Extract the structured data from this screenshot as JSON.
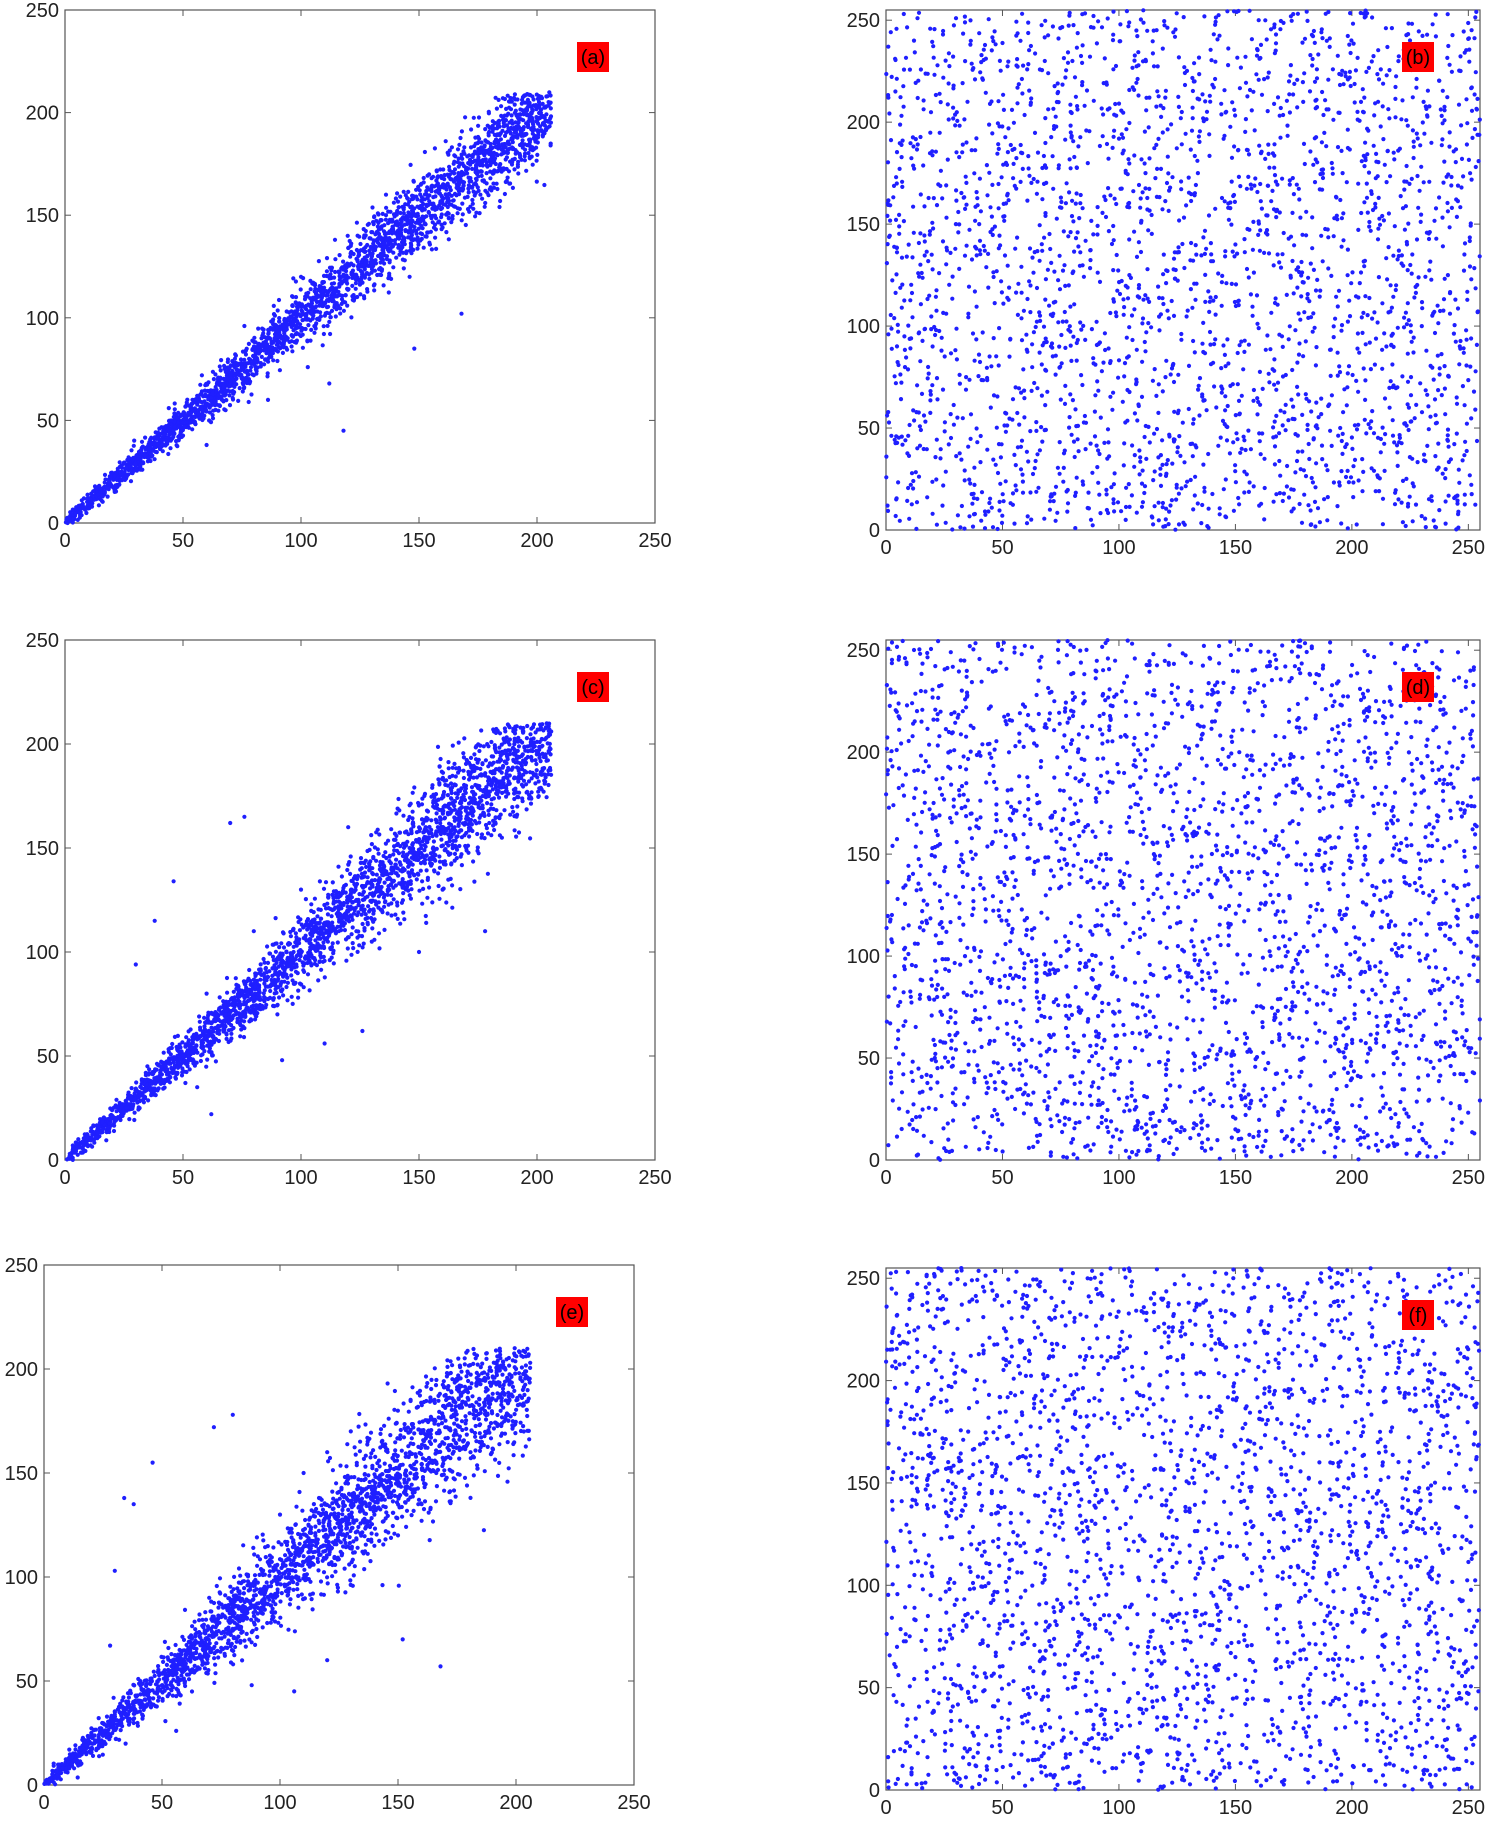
{
  "chart_data": [
    {
      "type": "scatter",
      "panel_label": "(a)",
      "xlim": [
        0,
        250
      ],
      "ylim": [
        0,
        250
      ],
      "xticks": [
        "0",
        "50",
        "100",
        "150",
        "200",
        "250"
      ],
      "yticks": [
        "0",
        "50",
        "100",
        "150",
        "200",
        "250"
      ],
      "grid": false,
      "marker_color": "#1f1fff",
      "label_bg": "#ff0000",
      "points": [
        [
          2,
          2
        ],
        [
          6,
          5
        ],
        [
          10,
          9
        ],
        [
          14,
          14
        ],
        [
          18,
          17
        ],
        [
          22,
          21
        ],
        [
          26,
          27
        ],
        [
          30,
          29
        ],
        [
          34,
          33
        ],
        [
          38,
          37
        ],
        [
          42,
          43
        ],
        [
          46,
          45
        ],
        [
          50,
          49
        ],
        [
          54,
          55
        ],
        [
          58,
          56
        ],
        [
          62,
          61
        ],
        [
          66,
          68
        ],
        [
          70,
          69
        ],
        [
          74,
          72
        ],
        [
          78,
          80
        ],
        [
          82,
          84
        ],
        [
          86,
          83
        ],
        [
          90,
          91
        ],
        [
          94,
          97
        ],
        [
          98,
          95
        ],
        [
          102,
          101
        ],
        [
          106,
          110
        ],
        [
          110,
          107
        ],
        [
          114,
          113
        ],
        [
          118,
          121
        ],
        [
          122,
          123
        ],
        [
          126,
          122
        ],
        [
          130,
          131
        ],
        [
          134,
          138
        ],
        [
          138,
          134
        ],
        [
          142,
          142
        ],
        [
          146,
          150
        ],
        [
          150,
          146
        ],
        [
          154,
          155
        ],
        [
          158,
          162
        ],
        [
          162,
          158
        ],
        [
          166,
          165
        ],
        [
          170,
          172
        ],
        [
          174,
          171
        ],
        [
          178,
          177
        ],
        [
          182,
          185
        ],
        [
          186,
          183
        ],
        [
          190,
          192
        ],
        [
          196,
          199
        ],
        [
          204,
          203
        ],
        [
          8,
          12
        ],
        [
          16,
          13
        ],
        [
          24,
          28
        ],
        [
          32,
          26
        ],
        [
          40,
          46
        ],
        [
          48,
          42
        ],
        [
          56,
          62
        ],
        [
          64,
          58
        ],
        [
          72,
          80
        ],
        [
          80,
          72
        ],
        [
          88,
          98
        ],
        [
          96,
          86
        ],
        [
          104,
          118
        ],
        [
          112,
          98
        ],
        [
          120,
          134
        ],
        [
          128,
          114
        ],
        [
          136,
          150
        ],
        [
          144,
          128
        ],
        [
          152,
          166
        ],
        [
          160,
          144
        ],
        [
          168,
          178
        ],
        [
          176,
          160
        ],
        [
          184,
          196
        ],
        [
          192,
          176
        ],
        [
          60,
          38
        ],
        [
          86,
          60
        ],
        [
          112,
          68
        ],
        [
          118,
          45
        ],
        [
          148,
          85
        ],
        [
          168,
          102
        ],
        [
          146,
          120
        ],
        [
          136,
          160
        ],
        [
          124,
          140
        ],
        [
          100,
          120
        ],
        [
          76,
          96
        ],
        [
          58,
          72
        ],
        [
          44,
          56
        ]
      ]
    },
    {
      "type": "scatter",
      "panel_label": "(b)",
      "xlim": [
        0,
        255
      ],
      "ylim": [
        0,
        255
      ],
      "xticks": [
        "0",
        "50",
        "100",
        "150",
        "200",
        "250"
      ],
      "yticks": [
        "0",
        "50",
        "100",
        "150",
        "200",
        "250"
      ],
      "grid": false,
      "marker_color": "#1f1fff",
      "label_bg": "#ff0000",
      "distribution": "uniform",
      "points": [
        [
          12,
          240
        ],
        [
          35,
          210
        ],
        [
          58,
          185
        ],
        [
          80,
          230
        ],
        [
          104,
          160
        ],
        [
          127,
          205
        ],
        [
          150,
          140
        ],
        [
          173,
          220
        ],
        [
          196,
          175
        ],
        [
          219,
          120
        ],
        [
          242,
          195
        ],
        [
          20,
          90
        ],
        [
          45,
          60
        ],
        [
          70,
          110
        ],
        [
          95,
          35
        ],
        [
          120,
          75
        ],
        [
          145,
          20
        ],
        [
          170,
          95
        ],
        [
          195,
          50
        ],
        [
          220,
          15
        ],
        [
          245,
          65
        ],
        [
          30,
          150
        ],
        [
          88,
          5
        ],
        [
          160,
          250
        ],
        [
          230,
          100
        ]
      ]
    },
    {
      "type": "scatter",
      "panel_label": "(c)",
      "xlim": [
        0,
        250
      ],
      "ylim": [
        0,
        250
      ],
      "xticks": [
        "0",
        "50",
        "100",
        "150",
        "200",
        "250"
      ],
      "yticks": [
        "0",
        "50",
        "100",
        "150",
        "200",
        "250"
      ],
      "grid": false,
      "marker_color": "#1f1fff",
      "label_bg": "#ff0000",
      "points": [
        [
          2,
          2
        ],
        [
          8,
          7
        ],
        [
          14,
          13
        ],
        [
          20,
          21
        ],
        [
          26,
          25
        ],
        [
          32,
          31
        ],
        [
          38,
          39
        ],
        [
          44,
          42
        ],
        [
          50,
          50
        ],
        [
          56,
          58
        ],
        [
          62,
          60
        ],
        [
          68,
          70
        ],
        [
          74,
          76
        ],
        [
          80,
          78
        ],
        [
          86,
          88
        ],
        [
          92,
          96
        ],
        [
          98,
          94
        ],
        [
          104,
          106
        ],
        [
          110,
          114
        ],
        [
          116,
          110
        ],
        [
          122,
          124
        ],
        [
          128,
          133
        ],
        [
          134,
          128
        ],
        [
          140,
          142
        ],
        [
          146,
          150
        ],
        [
          152,
          146
        ],
        [
          158,
          160
        ],
        [
          164,
          168
        ],
        [
          170,
          164
        ],
        [
          176,
          178
        ],
        [
          182,
          186
        ],
        [
          188,
          182
        ],
        [
          194,
          195
        ],
        [
          200,
          201
        ],
        [
          206,
          206
        ],
        [
          70,
          162
        ],
        [
          76,
          165
        ],
        [
          38,
          115
        ],
        [
          46,
          134
        ],
        [
          30,
          94
        ],
        [
          62,
          22
        ],
        [
          56,
          35
        ],
        [
          92,
          48
        ],
        [
          110,
          56
        ],
        [
          126,
          62
        ],
        [
          178,
          110
        ],
        [
          150,
          100
        ],
        [
          100,
          130
        ],
        [
          120,
          160
        ],
        [
          80,
          110
        ],
        [
          140,
          118
        ],
        [
          160,
          130
        ],
        [
          170,
          150
        ],
        [
          130,
          105
        ],
        [
          90,
          70
        ],
        [
          60,
          80
        ]
      ]
    },
    {
      "type": "scatter",
      "panel_label": "(d)",
      "xlim": [
        0,
        255
      ],
      "ylim": [
        0,
        255
      ],
      "xticks": [
        "0",
        "50",
        "100",
        "150",
        "200",
        "250"
      ],
      "yticks": [
        "0",
        "50",
        "100",
        "150",
        "200",
        "250"
      ],
      "grid": false,
      "marker_color": "#1f1fff",
      "label_bg": "#ff0000",
      "distribution": "uniform",
      "points": [
        [
          15,
          230
        ],
        [
          40,
          200
        ],
        [
          65,
          175
        ],
        [
          90,
          240
        ],
        [
          115,
          150
        ],
        [
          140,
          215
        ],
        [
          165,
          130
        ],
        [
          190,
          205
        ],
        [
          215,
          165
        ],
        [
          240,
          110
        ],
        [
          25,
          80
        ],
        [
          50,
          45
        ],
        [
          75,
          100
        ],
        [
          100,
          30
        ],
        [
          125,
          65
        ],
        [
          150,
          15
        ],
        [
          175,
          85
        ],
        [
          200,
          40
        ],
        [
          225,
          10
        ],
        [
          250,
          55
        ],
        [
          35,
          140
        ],
        [
          95,
          190
        ],
        [
          155,
          250
        ],
        [
          210,
          95
        ],
        [
          5,
          128
        ]
      ]
    },
    {
      "type": "scatter",
      "panel_label": "(e)",
      "xlim": [
        0,
        250
      ],
      "ylim": [
        0,
        250
      ],
      "xticks": [
        "0",
        "50",
        "100",
        "150",
        "200",
        "250"
      ],
      "yticks": [
        "0",
        "50",
        "100",
        "150",
        "200",
        "250"
      ],
      "grid": false,
      "marker_color": "#1f1fff",
      "label_bg": "#ff0000",
      "points": [
        [
          2,
          2
        ],
        [
          8,
          8
        ],
        [
          14,
          12
        ],
        [
          20,
          20
        ],
        [
          26,
          26
        ],
        [
          32,
          30
        ],
        [
          38,
          38
        ],
        [
          44,
          45
        ],
        [
          50,
          48
        ],
        [
          56,
          56
        ],
        [
          62,
          64
        ],
        [
          68,
          66
        ],
        [
          74,
          74
        ],
        [
          80,
          82
        ],
        [
          86,
          80
        ],
        [
          92,
          92
        ],
        [
          98,
          100
        ],
        [
          104,
          97
        ],
        [
          110,
          110
        ],
        [
          116,
          118
        ],
        [
          122,
          114
        ],
        [
          128,
          128
        ],
        [
          134,
          136
        ],
        [
          140,
          130
        ],
        [
          146,
          146
        ],
        [
          152,
          154
        ],
        [
          158,
          148
        ],
        [
          164,
          164
        ],
        [
          170,
          172
        ],
        [
          176,
          166
        ],
        [
          182,
          182
        ],
        [
          188,
          190
        ],
        [
          194,
          186
        ],
        [
          200,
          200
        ],
        [
          206,
          203
        ],
        [
          72,
          172
        ],
        [
          80,
          178
        ],
        [
          46,
          155
        ],
        [
          38,
          135
        ],
        [
          30,
          103
        ],
        [
          34,
          138
        ],
        [
          28,
          67
        ],
        [
          56,
          26
        ],
        [
          52,
          48
        ],
        [
          88,
          48
        ],
        [
          106,
          45
        ],
        [
          120,
          60
        ],
        [
          152,
          70
        ],
        [
          168,
          57
        ],
        [
          100,
          130
        ],
        [
          110,
          150
        ],
        [
          120,
          160
        ],
        [
          130,
          170
        ],
        [
          140,
          115
        ],
        [
          150,
          120
        ],
        [
          160,
          135
        ],
        [
          90,
          75
        ],
        [
          70,
          90
        ]
      ]
    },
    {
      "type": "scatter",
      "panel_label": "(f)",
      "xlim": [
        0,
        255
      ],
      "ylim": [
        0,
        255
      ],
      "xticks": [
        "0",
        "50",
        "100",
        "150",
        "200",
        "250"
      ],
      "yticks": [
        "0",
        "50",
        "100",
        "150",
        "200",
        "250"
      ],
      "grid": false,
      "marker_color": "#1f1fff",
      "label_bg": "#ff0000",
      "distribution": "uniform",
      "points": [
        [
          10,
          235
        ],
        [
          33,
          205
        ],
        [
          56,
          180
        ],
        [
          79,
          245
        ],
        [
          102,
          155
        ],
        [
          125,
          210
        ],
        [
          148,
          135
        ],
        [
          171,
          225
        ],
        [
          194,
          170
        ],
        [
          217,
          115
        ],
        [
          240,
          190
        ],
        [
          18,
          85
        ],
        [
          43,
          55
        ],
        [
          68,
          105
        ],
        [
          93,
          25
        ],
        [
          118,
          70
        ],
        [
          143,
          18
        ],
        [
          168,
          90
        ],
        [
          193,
          45
        ],
        [
          218,
          12
        ],
        [
          243,
          60
        ],
        [
          28,
          145
        ],
        [
          140,
          155
        ],
        [
          160,
          250
        ],
        [
          228,
          98
        ]
      ]
    }
  ]
}
